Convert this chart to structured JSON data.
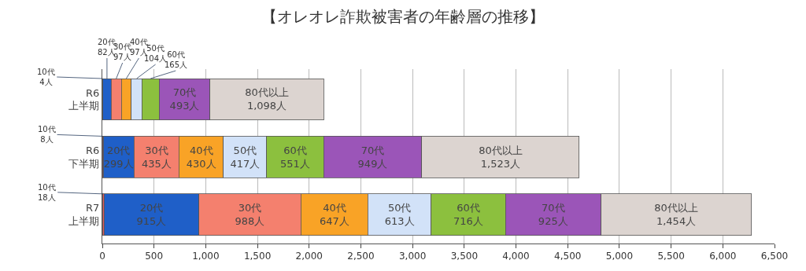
{
  "chart_data": {
    "type": "bar",
    "orientation": "horizontal",
    "stacked": true,
    "title": "【オレオレ詐欺被害者の年齢層の推移】",
    "categories": [
      "R6\n上半期",
      "R6\n下半期",
      "R7\n上半期"
    ],
    "series": [
      {
        "name": "10代",
        "color": "#e05a5a",
        "values": [
          4,
          8,
          18
        ],
        "value_labels": [
          "4人",
          "8人",
          "18人"
        ]
      },
      {
        "name": "20代",
        "color": "#1f5fc8",
        "values": [
          82,
          299,
          915
        ],
        "value_labels": [
          "82人",
          "299人",
          "915人"
        ]
      },
      {
        "name": "30代",
        "color": "#f4806e",
        "values": [
          97,
          435,
          988
        ],
        "value_labels": [
          "97人",
          "435人",
          "988人"
        ]
      },
      {
        "name": "40代",
        "color": "#f9a326",
        "values": [
          97,
          430,
          647
        ],
        "value_labels": [
          "97人",
          "430人",
          "647人"
        ]
      },
      {
        "name": "50代",
        "color": "#d2e2f8",
        "values": [
          104,
          417,
          613
        ],
        "value_labels": [
          "104人",
          "417人",
          "613人"
        ]
      },
      {
        "name": "60代",
        "color": "#8cc03e",
        "values": [
          165,
          551,
          716
        ],
        "value_labels": [
          "165人",
          "551人",
          "716人"
        ]
      },
      {
        "name": "70代",
        "color": "#9b55b8",
        "values": [
          493,
          949,
          925
        ],
        "value_labels": [
          "493人",
          "949人",
          "925人"
        ]
      },
      {
        "name": "80代以上",
        "color": "#dcd4d0",
        "values": [
          1098,
          1523,
          1454
        ],
        "value_labels": [
          "1,098人",
          "1,523人",
          "1,454人"
        ]
      }
    ],
    "xlim": [
      0,
      6500
    ],
    "xticks": [
      0,
      500,
      {
        "value": 1000,
        "label": "1,000"
      },
      {
        "value": 1500,
        "label": "1,500"
      },
      {
        "value": 2000,
        "label": "2,000"
      },
      {
        "value": 2500,
        "label": "2,500"
      },
      {
        "value": 3000,
        "label": "3,000"
      },
      {
        "value": 3500,
        "label": "3,500"
      },
      {
        "value": 4000,
        "label": "4,000"
      },
      {
        "value": 4500,
        "label": "4,500"
      },
      {
        "value": 5000,
        "label": "5,000"
      },
      {
        "value": 5500,
        "label": "5,500"
      },
      {
        "value": 6000,
        "label": "6,000"
      },
      {
        "value": 6500,
        "label": "6,500"
      }
    ],
    "grid": "x",
    "legend": false
  }
}
